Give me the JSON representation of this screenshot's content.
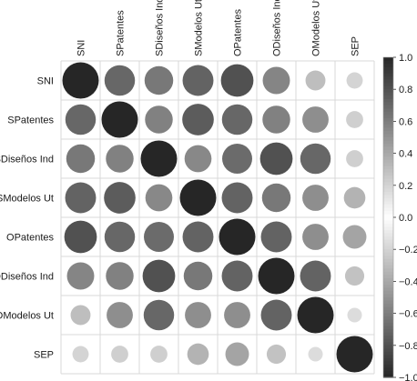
{
  "chart_data": {
    "type": "heatmap",
    "style": "circles (correlation matrix, size and shade = |r|)",
    "row_labels": [
      "SNI",
      "SPatentes",
      "SDiseños Ind",
      "SModelos Ut",
      "OPatentes",
      "ODiseños Ind",
      "OModelos Ut",
      "SEP"
    ],
    "col_labels": [
      "SNI",
      "SPatentes",
      "SDiseños Ind",
      "SModelos Ut",
      "OPatentes",
      "ODiseños Ind",
      "OModelos Ut",
      "SEP"
    ],
    "values": [
      [
        1.0,
        0.7,
        0.62,
        0.72,
        0.8,
        0.56,
        0.3,
        0.2
      ],
      [
        0.7,
        1.0,
        0.58,
        0.75,
        0.7,
        0.58,
        0.52,
        0.22
      ],
      [
        0.62,
        0.58,
        1.0,
        0.55,
        0.68,
        0.8,
        0.7,
        0.22
      ],
      [
        0.72,
        0.75,
        0.55,
        1.0,
        0.72,
        0.62,
        0.52,
        0.35
      ],
      [
        0.8,
        0.7,
        0.68,
        0.72,
        1.0,
        0.72,
        0.52,
        0.42
      ],
      [
        0.56,
        0.58,
        0.8,
        0.62,
        0.72,
        1.0,
        0.72,
        0.28
      ],
      [
        0.3,
        0.52,
        0.7,
        0.52,
        0.52,
        0.72,
        1.0,
        0.16
      ],
      [
        0.2,
        0.22,
        0.22,
        0.35,
        0.42,
        0.28,
        0.16,
        1.0
      ]
    ],
    "colorbar": {
      "range": [
        -1.0,
        1.0
      ],
      "ticks": [
        "1.0",
        "0.8",
        "0.6",
        "0.4",
        "0.2",
        "0.0",
        "−0.2",
        "−0.4",
        "−0.6",
        "−0.8",
        "−1.0"
      ]
    },
    "colors": {
      "high": "#262626",
      "mid": "#ffffff",
      "grid": "#d9d9d9"
    }
  }
}
